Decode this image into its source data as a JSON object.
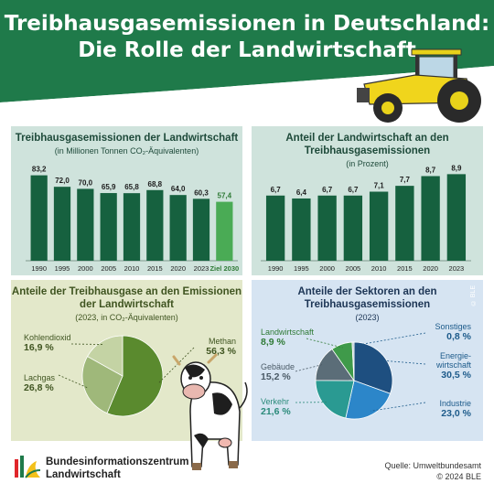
{
  "title_line1": "Treibhausgasemissionen in Deutschland:",
  "title_line2": "Die Rolle der Landwirtschaft",
  "colors": {
    "header_green": "#1f7a4a",
    "bar_green": "#16613f",
    "bar_target": "#4aab55",
    "pie_dark": "#5a8a2e",
    "pie_mid": "#9fb87a",
    "pie_light": "#c4d3a4"
  },
  "panel1": {
    "title": "Treibhausgasemissionen der Landwirtschaft",
    "subtitle": "(in Millionen Tonnen CO₂-Äquivalenten)"
  },
  "panel2": {
    "title": "Anteil der Landwirtschaft an den Treibhausgasemissionen",
    "subtitle": "(in Prozent)"
  },
  "panel3": {
    "title": "Anteile der Treibhausgase an den Emissionen der Landwirtschaft",
    "subtitle": "(2023, in CO₂-Äquivalenten)"
  },
  "panel4": {
    "title": "Anteile der Sektoren an den Treibhausgasemissionen",
    "subtitle": "(2023)"
  },
  "chart_data": [
    {
      "type": "bar",
      "categories": [
        "1990",
        "1995",
        "2000",
        "2005",
        "2010",
        "2015",
        "2020",
        "2023",
        "Ziel 2030"
      ],
      "values": [
        83.2,
        72.0,
        70.0,
        65.9,
        65.8,
        68.8,
        64.0,
        60.3,
        57.4
      ],
      "value_labels": [
        "83,2",
        "72,0",
        "70,0",
        "65,9",
        "65,8",
        "68,8",
        "64,0",
        "60,3",
        "57,4"
      ],
      "highlight": "Ziel 2030",
      "ylim": [
        0,
        90
      ]
    },
    {
      "type": "bar",
      "categories": [
        "1990",
        "1995",
        "2000",
        "2005",
        "2010",
        "2015",
        "2020",
        "2023"
      ],
      "values": [
        6.7,
        6.4,
        6.7,
        6.7,
        7.1,
        7.7,
        8.7,
        8.9
      ],
      "value_labels": [
        "6,7",
        "6,4",
        "6,7",
        "6,7",
        "7,1",
        "7,7",
        "8,7",
        "8,9"
      ],
      "ylim": [
        0,
        9.5
      ]
    },
    {
      "type": "pie",
      "slices": [
        {
          "name": "Methan",
          "value": 56.3,
          "label": "56,3 %",
          "color": "#5a8a2e"
        },
        {
          "name": "Lachgas",
          "value": 26.8,
          "label": "26,8 %",
          "color": "#9fb87a"
        },
        {
          "name": "Kohlendioxid",
          "value": 16.9,
          "label": "16,9 %",
          "color": "#c4d3a4"
        }
      ]
    },
    {
      "type": "pie",
      "slices": [
        {
          "name": "Energie-wirtschaft",
          "value": 30.5,
          "label": "30,5 %",
          "color": "#1e4f80"
        },
        {
          "name": "Industrie",
          "value": 23.0,
          "label": "23,0 %",
          "color": "#2c86c9"
        },
        {
          "name": "Verkehr",
          "value": 21.6,
          "label": "21,6 %",
          "color": "#2a9a92"
        },
        {
          "name": "Gebäude",
          "value": 15.2,
          "label": "15,2 %",
          "color": "#5b6d78"
        },
        {
          "name": "Landwirtschaft",
          "value": 8.9,
          "label": "8,9 %",
          "color": "#3f9a4a"
        },
        {
          "name": "Sonstiges",
          "value": 0.8,
          "label": "0,8 %",
          "color": "#b9c7d2"
        }
      ]
    }
  ],
  "footer": {
    "org_line1": "Bundesinformationszentrum",
    "org_line2": "Landwirtschaft",
    "source": "Quelle: Umweltbundesamt",
    "copyright": "© 2024 BLE",
    "vertical_copyright": "© BLE"
  }
}
